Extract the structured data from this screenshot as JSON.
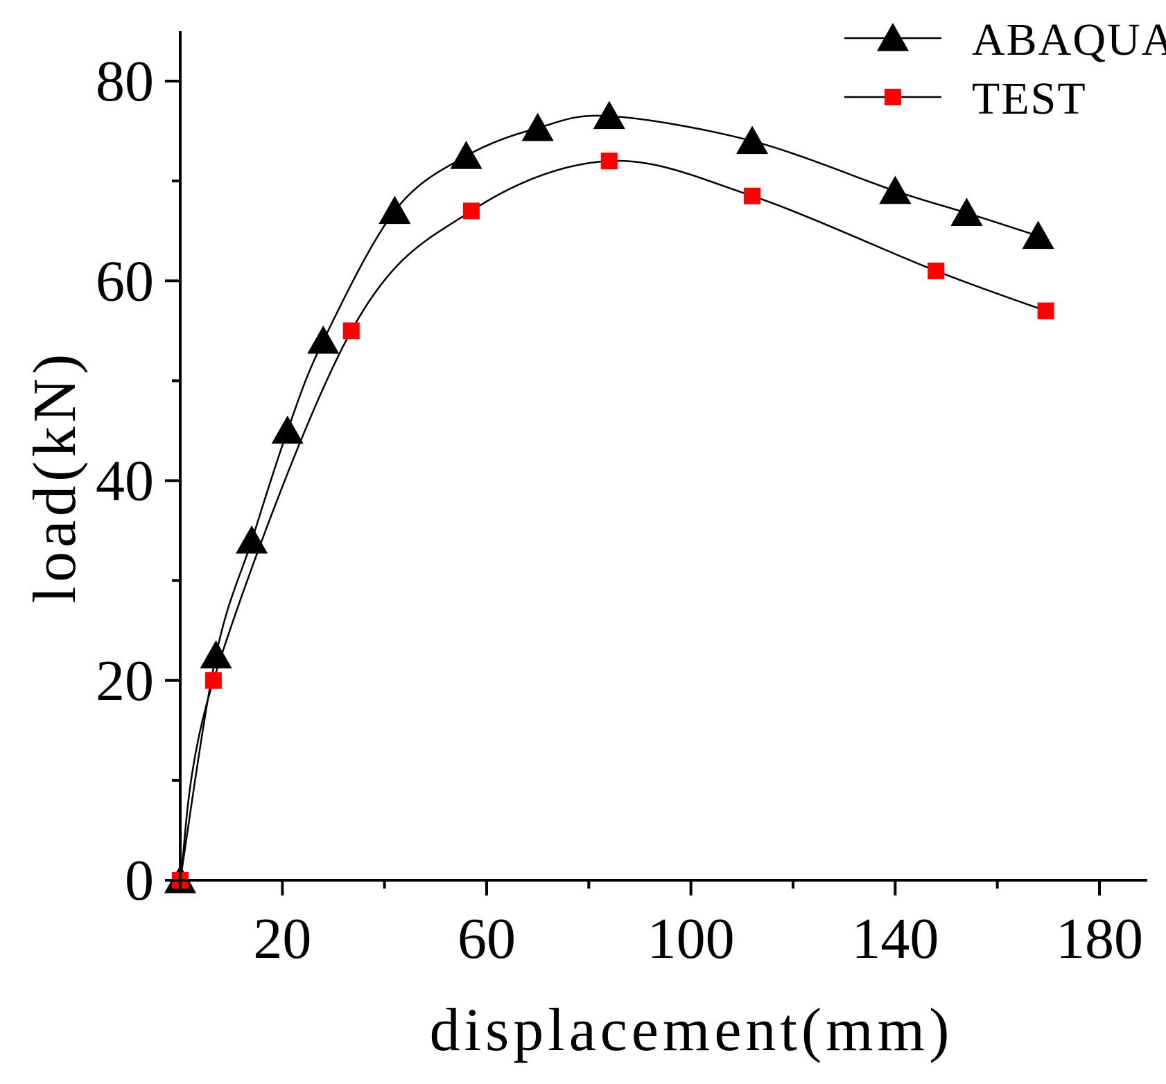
{
  "chart_data": {
    "type": "line",
    "title": "",
    "xlabel": "displacement(mm)",
    "ylabel": "load(kN)",
    "xlim": [
      0,
      190
    ],
    "ylim": [
      0,
      85
    ],
    "xticks": [
      20,
      60,
      100,
      140,
      180
    ],
    "xtick_labels": [
      "20",
      "60",
      "100",
      "140",
      "180"
    ],
    "xminor": [
      40,
      80,
      120,
      160
    ],
    "yticks": [
      0,
      20,
      40,
      60,
      80
    ],
    "ytick_labels": [
      "0",
      "20",
      "40",
      "60",
      "80"
    ],
    "yminor": [
      10,
      30,
      50,
      70
    ],
    "legend_position": "top-right",
    "series": [
      {
        "name": "ABAQUAS",
        "marker": "triangle",
        "color": "#000000",
        "x": [
          0,
          7,
          14,
          21,
          28,
          42,
          56,
          70,
          84,
          112,
          140,
          154,
          168
        ],
        "y": [
          0,
          22.5,
          34,
          45,
          54,
          67,
          72.5,
          75.3,
          76.5,
          74,
          69,
          66.8,
          64.5
        ]
      },
      {
        "name": "TEST",
        "marker": "square",
        "color": "#ff0000",
        "x": [
          0,
          6.5,
          33.5,
          57,
          84,
          112,
          148,
          169.5
        ],
        "y": [
          0,
          20,
          55,
          67,
          72,
          68.5,
          61,
          57
        ]
      }
    ]
  }
}
